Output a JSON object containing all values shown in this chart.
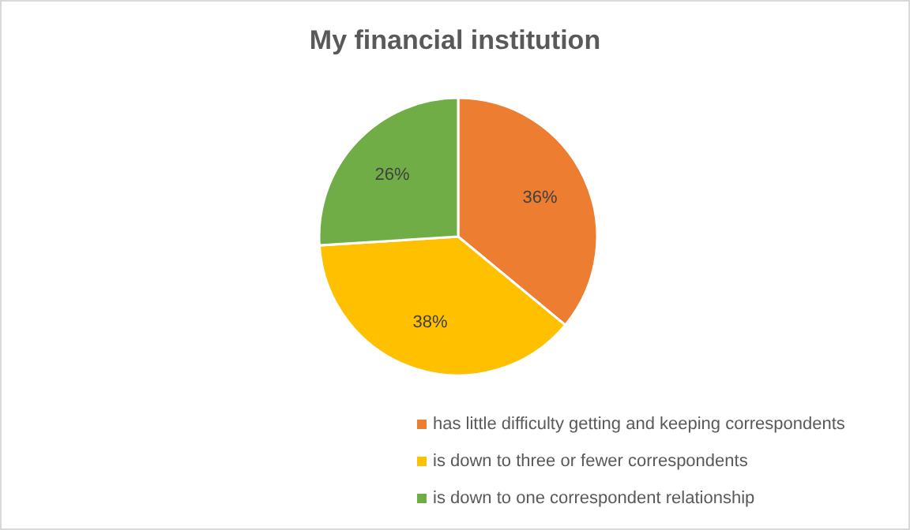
{
  "chart_data": {
    "type": "pie",
    "title": "My financial institution",
    "categories": [
      "has little difficulty getting and keeping correspondents",
      "is down to three or fewer correspondents",
      "is down to one correspondent relationship"
    ],
    "values": [
      36,
      38,
      26
    ],
    "colors": [
      "#ed7d31",
      "#ffc000",
      "#70ad47"
    ],
    "value_labels": [
      "36%",
      "38%",
      "26%"
    ],
    "legend": "bottom"
  }
}
